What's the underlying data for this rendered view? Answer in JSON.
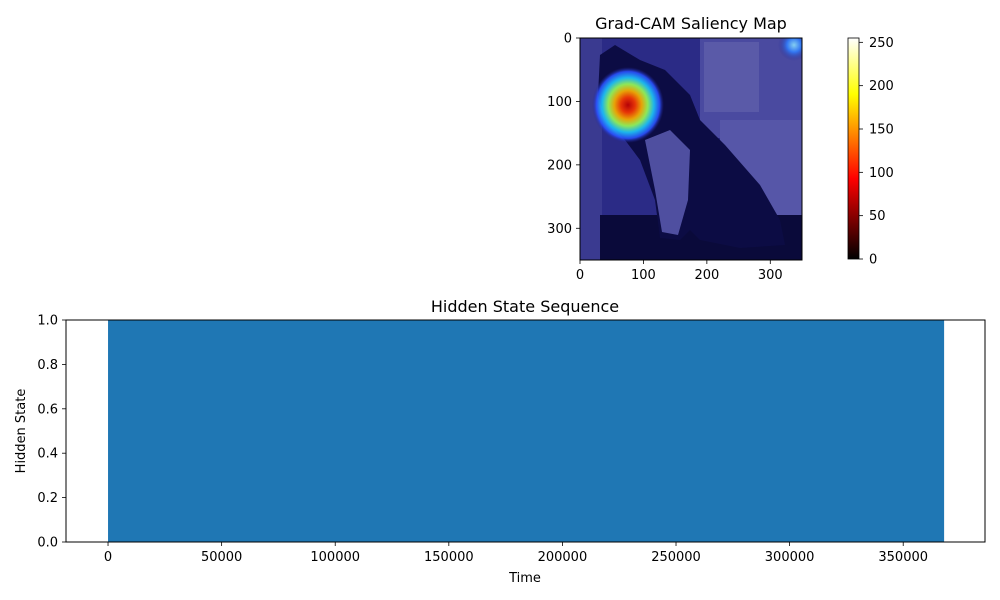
{
  "chart_data": [
    {
      "type": "heatmap",
      "title": "Grad-CAM Saliency Map",
      "xlabel": "",
      "ylabel": "",
      "xlim": [
        0,
        350
      ],
      "ylim": [
        350,
        0
      ],
      "xticks": [
        0,
        100,
        200,
        300
      ],
      "yticks": [
        0,
        100,
        200,
        300
      ],
      "xtick_labels": [
        "0",
        "100",
        "200",
        "300"
      ],
      "ytick_labels": [
        "0",
        "100",
        "200",
        "300"
      ],
      "hotspot": {
        "x": 75,
        "y": 105,
        "peak": 255
      },
      "secondary_hotspot": {
        "x": 335,
        "y": 12
      },
      "colormap_overlay": "jet",
      "colorbar": {
        "colormap": "hot",
        "range": [
          0,
          255
        ],
        "ticks": [
          0,
          50,
          100,
          150,
          200,
          250
        ],
        "tick_labels": [
          "0",
          "50",
          "100",
          "150",
          "200",
          "250"
        ]
      }
    },
    {
      "type": "area",
      "title": "Hidden State Sequence",
      "xlabel": "Time",
      "ylabel": "Hidden State",
      "xlim": [
        -18500,
        386000
      ],
      "ylim": [
        0,
        1
      ],
      "x_filled_range": [
        0,
        368000
      ],
      "fill_value": 1.0,
      "color": "#1f77b4",
      "xticks": [
        0,
        50000,
        100000,
        150000,
        200000,
        250000,
        300000,
        350000
      ],
      "xtick_labels": [
        "0",
        "50000",
        "100000",
        "150000",
        "200000",
        "250000",
        "300000",
        "350000"
      ],
      "yticks": [
        0,
        0.2,
        0.4,
        0.6,
        0.8,
        1.0
      ],
      "ytick_labels": [
        "0.0",
        "0.2",
        "0.4",
        "0.6",
        "0.8",
        "1.0"
      ]
    }
  ]
}
